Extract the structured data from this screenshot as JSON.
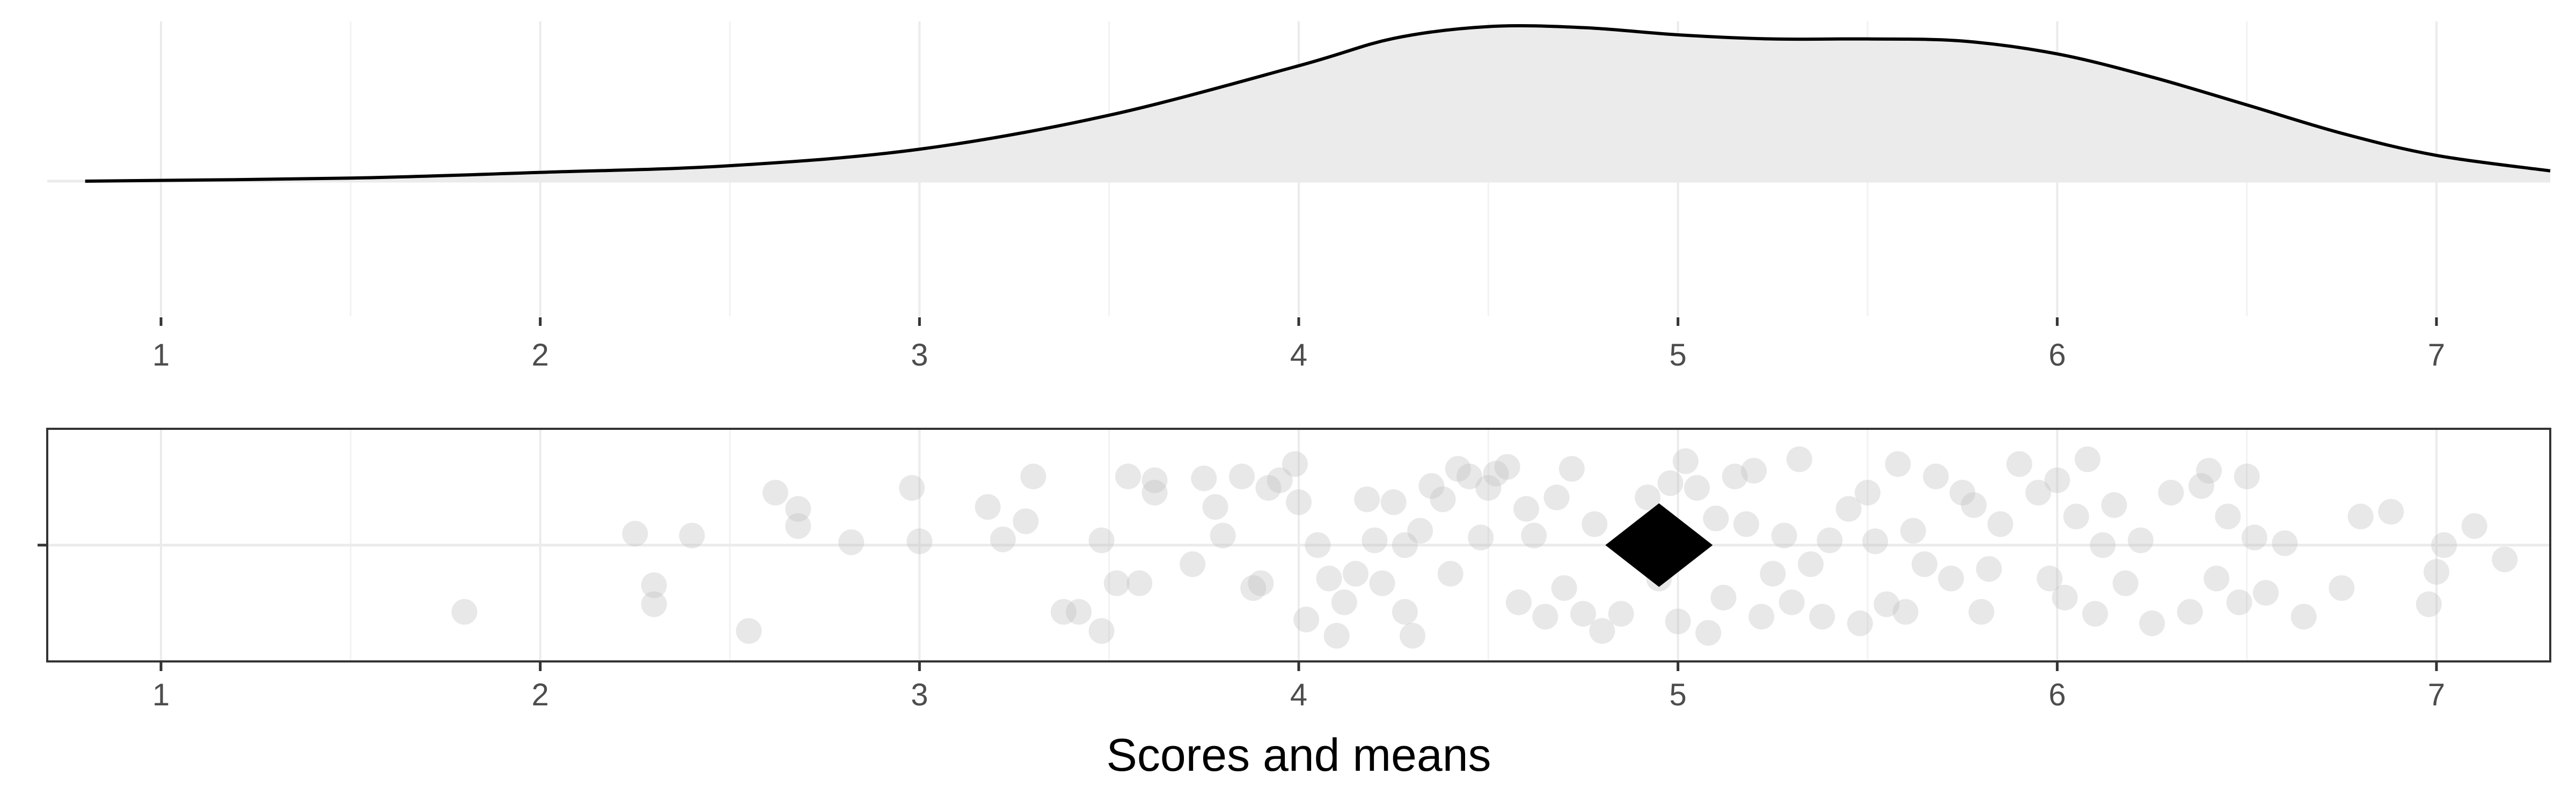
{
  "chart_data": [
    {
      "type": "density",
      "panel": "top",
      "x_ticks": [
        1,
        2,
        3,
        4,
        5,
        6,
        7
      ],
      "xlim": [
        0.7,
        7.3
      ],
      "ylim": [
        0,
        0.31
      ],
      "grid": true,
      "fill_color": "#ebebeb",
      "line_color": "#000000",
      "density": {
        "x": [
          0.8,
          1.5,
          2.0,
          2.5,
          3.0,
          3.5,
          4.0,
          4.25,
          4.5,
          4.75,
          5.0,
          5.25,
          5.5,
          5.75,
          6.0,
          6.25,
          6.5,
          6.75,
          7.0,
          7.3
        ],
        "y": [
          0.0,
          0.006,
          0.017,
          0.03,
          0.062,
          0.128,
          0.224,
          0.277,
          0.3,
          0.298,
          0.284,
          0.276,
          0.276,
          0.272,
          0.247,
          0.202,
          0.148,
          0.093,
          0.05,
          0.02
        ]
      }
    },
    {
      "type": "scatter",
      "panel": "bottom",
      "x_ticks": [
        1,
        2,
        3,
        4,
        5,
        6,
        7
      ],
      "xlim": [
        0.7,
        7.3
      ],
      "ylim": [
        -1,
        1
      ],
      "xlabel": "Scores and means",
      "grid": true,
      "point_color": "#bdbdbd",
      "point_opacity": 0.35,
      "mean": {
        "x": 4.95,
        "y": 0.0,
        "marker": "diamond",
        "color": "#000000"
      },
      "points": [
        [
          1.8,
          -0.7
        ],
        [
          2.25,
          0.12
        ],
        [
          2.3,
          -0.42
        ],
        [
          2.3,
          -0.62
        ],
        [
          2.4,
          0.1
        ],
        [
          2.55,
          -0.9
        ],
        [
          2.62,
          0.55
        ],
        [
          2.68,
          0.38
        ],
        [
          2.68,
          0.2
        ],
        [
          2.82,
          0.03
        ],
        [
          2.98,
          0.6
        ],
        [
          3.0,
          0.04
        ],
        [
          3.18,
          0.4
        ],
        [
          3.22,
          0.06
        ],
        [
          3.28,
          0.25
        ],
        [
          3.3,
          0.72
        ],
        [
          3.38,
          -0.7
        ],
        [
          3.42,
          -0.7
        ],
        [
          3.48,
          -0.9
        ],
        [
          3.48,
          0.05
        ],
        [
          3.52,
          -0.4
        ],
        [
          3.55,
          0.72
        ],
        [
          3.58,
          -0.4
        ],
        [
          3.62,
          0.55
        ],
        [
          3.62,
          0.68
        ],
        [
          3.72,
          -0.2
        ],
        [
          3.75,
          0.7
        ],
        [
          3.78,
          0.4
        ],
        [
          3.8,
          0.1
        ],
        [
          3.85,
          0.72
        ],
        [
          3.88,
          -0.45
        ],
        [
          3.9,
          -0.4
        ],
        [
          3.92,
          0.6
        ],
        [
          3.95,
          0.68
        ],
        [
          3.99,
          0.85
        ],
        [
          4.0,
          0.45
        ],
        [
          4.02,
          -0.78
        ],
        [
          4.05,
          0.0
        ],
        [
          4.08,
          -0.35
        ],
        [
          4.1,
          -0.95
        ],
        [
          4.12,
          -0.6
        ],
        [
          4.15,
          -0.3
        ],
        [
          4.18,
          0.48
        ],
        [
          4.2,
          0.05
        ],
        [
          4.22,
          -0.4
        ],
        [
          4.25,
          0.45
        ],
        [
          4.28,
          0.0
        ],
        [
          4.28,
          -0.7
        ],
        [
          4.3,
          -0.95
        ],
        [
          4.32,
          0.15
        ],
        [
          4.35,
          0.62
        ],
        [
          4.38,
          0.48
        ],
        [
          4.4,
          -0.3
        ],
        [
          4.42,
          0.8
        ],
        [
          4.45,
          0.72
        ],
        [
          4.48,
          0.08
        ],
        [
          4.5,
          0.6
        ],
        [
          4.52,
          0.75
        ],
        [
          4.55,
          0.82
        ],
        [
          4.58,
          -0.6
        ],
        [
          4.6,
          0.38
        ],
        [
          4.62,
          0.1
        ],
        [
          4.65,
          -0.75
        ],
        [
          4.68,
          0.5
        ],
        [
          4.7,
          -0.45
        ],
        [
          4.72,
          0.8
        ],
        [
          4.75,
          -0.72
        ],
        [
          4.78,
          0.22
        ],
        [
          4.8,
          -0.9
        ],
        [
          4.85,
          -0.72
        ],
        [
          4.88,
          0.0
        ],
        [
          4.92,
          0.5
        ],
        [
          4.95,
          -0.35
        ],
        [
          4.98,
          0.65
        ],
        [
          5.0,
          -0.8
        ],
        [
          5.02,
          0.88
        ],
        [
          5.05,
          0.6
        ],
        [
          5.08,
          -0.92
        ],
        [
          5.1,
          0.28
        ],
        [
          5.12,
          -0.55
        ],
        [
          5.15,
          0.72
        ],
        [
          5.18,
          0.22
        ],
        [
          5.2,
          0.78
        ],
        [
          5.22,
          -0.75
        ],
        [
          5.25,
          -0.3
        ],
        [
          5.28,
          0.1
        ],
        [
          5.3,
          -0.6
        ],
        [
          5.32,
          0.9
        ],
        [
          5.35,
          -0.2
        ],
        [
          5.38,
          -0.75
        ],
        [
          5.4,
          0.05
        ],
        [
          5.45,
          0.38
        ],
        [
          5.48,
          -0.82
        ],
        [
          5.5,
          0.55
        ],
        [
          5.52,
          0.04
        ],
        [
          5.55,
          -0.62
        ],
        [
          5.58,
          0.85
        ],
        [
          5.6,
          -0.7
        ],
        [
          5.62,
          0.15
        ],
        [
          5.65,
          -0.2
        ],
        [
          5.68,
          0.72
        ],
        [
          5.72,
          -0.35
        ],
        [
          5.75,
          0.55
        ],
        [
          5.78,
          0.42
        ],
        [
          5.8,
          -0.7
        ],
        [
          5.82,
          -0.25
        ],
        [
          5.85,
          0.22
        ],
        [
          5.9,
          0.85
        ],
        [
          5.95,
          0.55
        ],
        [
          5.98,
          -0.35
        ],
        [
          6.0,
          0.68
        ],
        [
          6.02,
          -0.55
        ],
        [
          6.05,
          0.3
        ],
        [
          6.08,
          0.9
        ],
        [
          6.1,
          -0.72
        ],
        [
          6.12,
          0.0
        ],
        [
          6.15,
          0.42
        ],
        [
          6.18,
          -0.4
        ],
        [
          6.22,
          0.05
        ],
        [
          6.25,
          -0.82
        ],
        [
          6.3,
          0.55
        ],
        [
          6.35,
          -0.7
        ],
        [
          6.38,
          0.62
        ],
        [
          6.4,
          0.78
        ],
        [
          6.42,
          -0.35
        ],
        [
          6.45,
          0.3
        ],
        [
          6.48,
          -0.6
        ],
        [
          6.5,
          0.72
        ],
        [
          6.52,
          0.08
        ],
        [
          6.55,
          -0.5
        ],
        [
          6.6,
          0.02
        ],
        [
          6.65,
          -0.75
        ],
        [
          6.75,
          -0.45
        ],
        [
          6.8,
          0.3
        ],
        [
          6.88,
          0.35
        ],
        [
          6.98,
          -0.62
        ],
        [
          7.0,
          -0.28
        ],
        [
          7.02,
          0.0
        ],
        [
          7.1,
          0.2
        ],
        [
          7.18,
          -0.15
        ]
      ]
    }
  ]
}
